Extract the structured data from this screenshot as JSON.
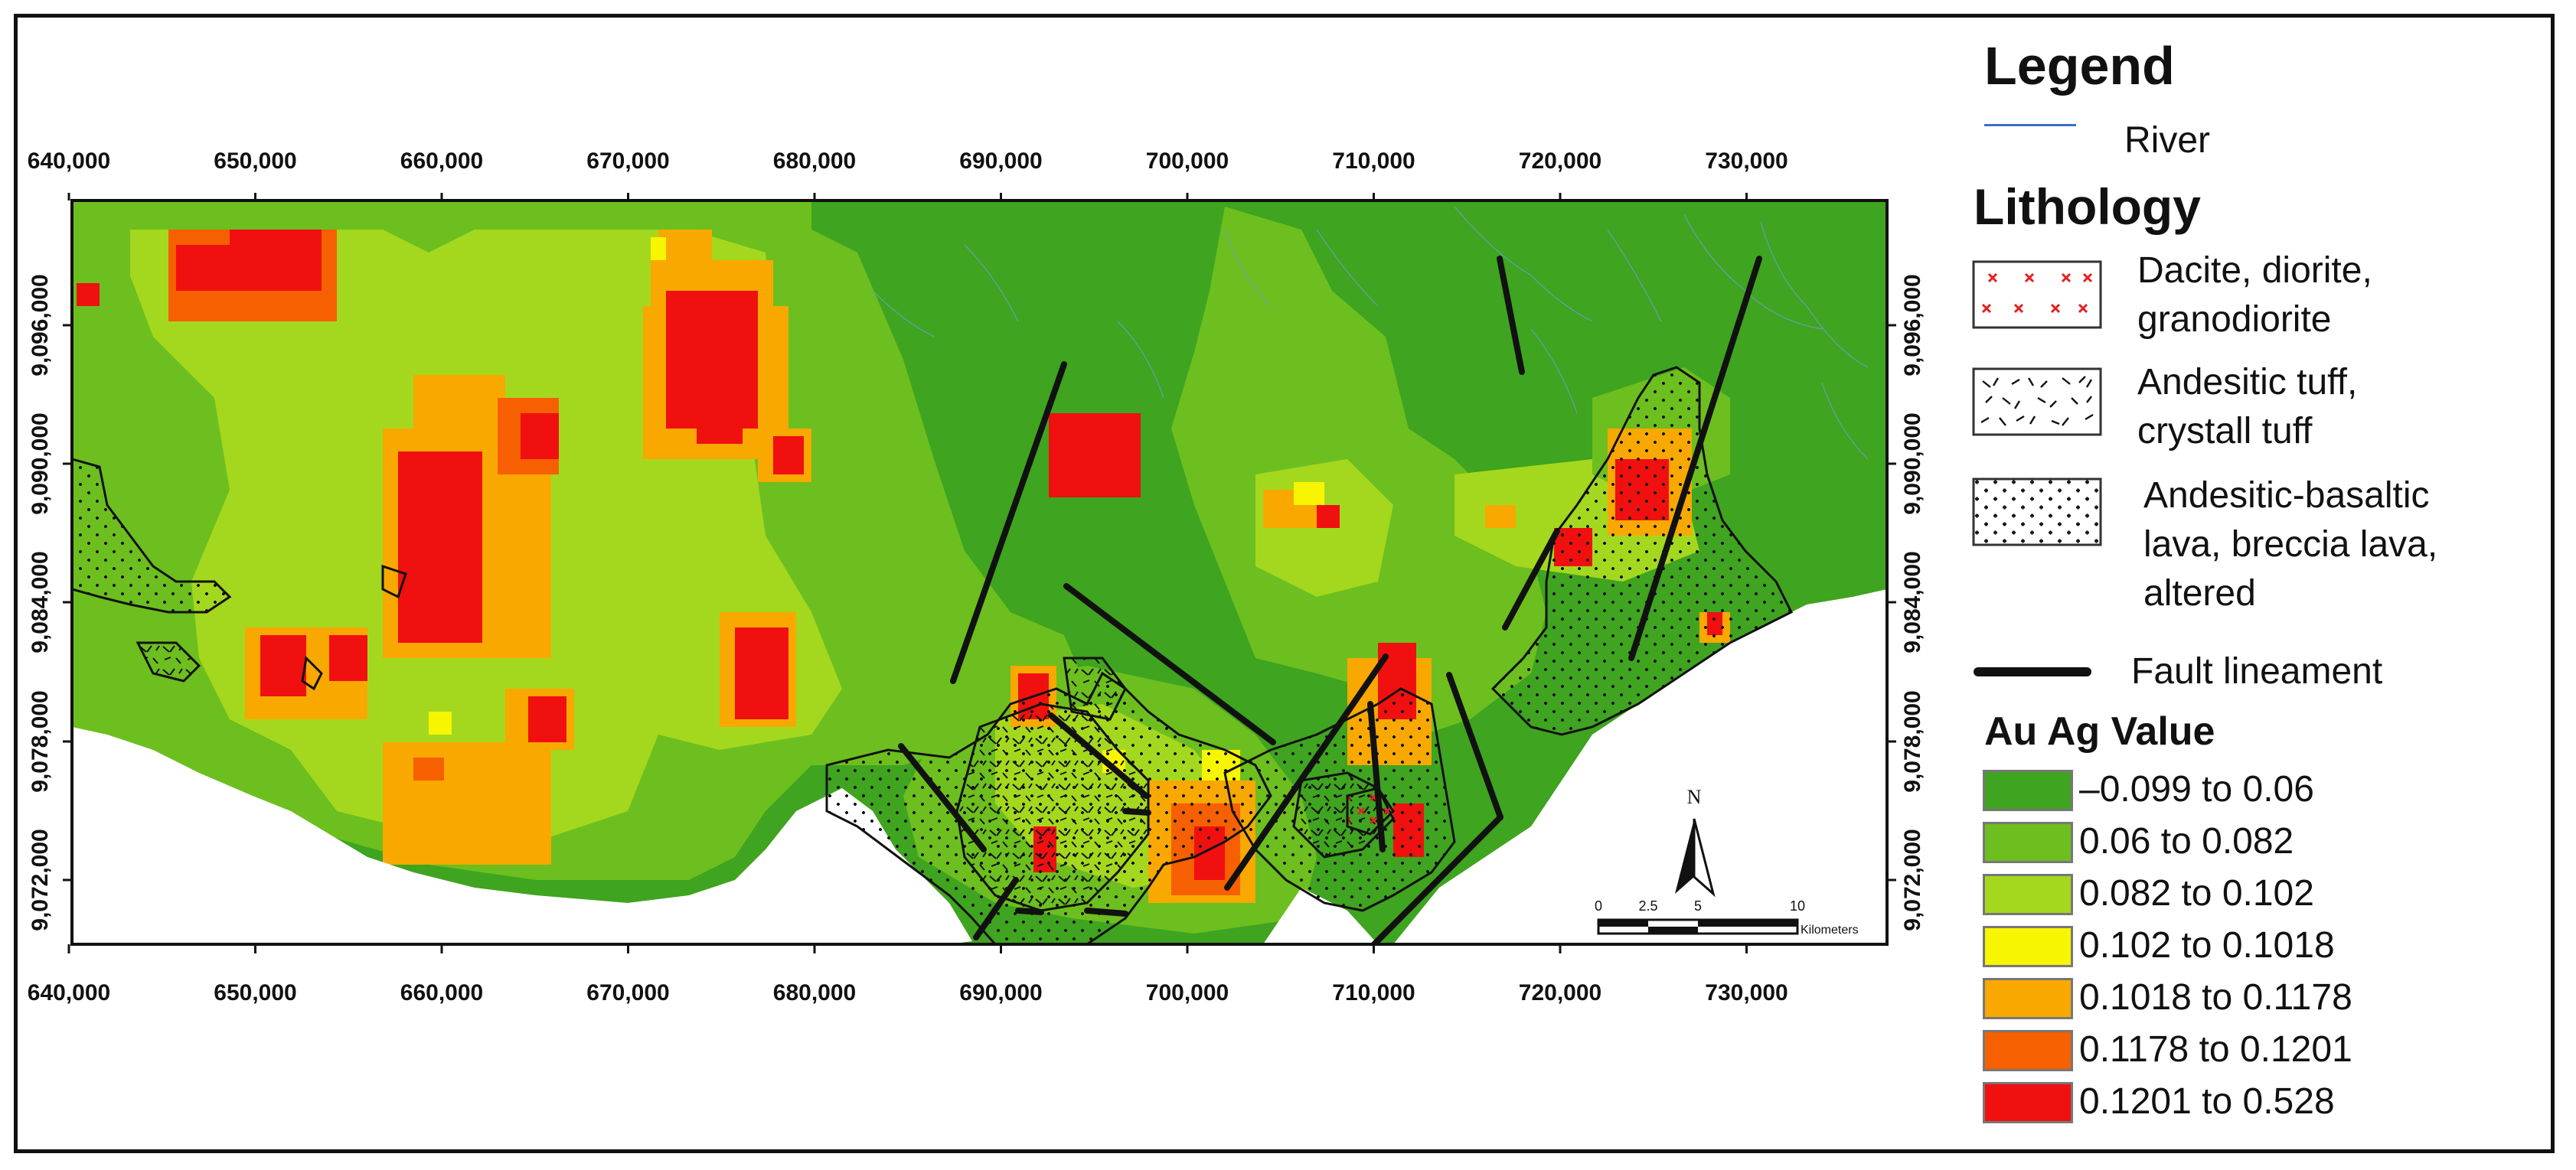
{
  "map": {
    "x_ticks": [
      "640,000",
      "650,000",
      "660,000",
      "670,000",
      "680,000",
      "690,000",
      "700,000",
      "710,000",
      "720,000",
      "730,000"
    ],
    "y_ticks": [
      "9,096,000",
      "9,090,000",
      "9,084,000",
      "9,078,000",
      "9,072,000"
    ],
    "scale_bar": {
      "labels": [
        "0",
        "2.5",
        "5",
        "10"
      ],
      "unit": "Kilometers",
      "north": "N"
    },
    "colors": {
      "background_green": "#3fa41f",
      "mid_green": "#6cbf1e",
      "light_green": "#a4d81e",
      "yellow": "#f8f500",
      "orange": "#f9a800",
      "dark_orange": "#f66000",
      "red": "#f01010",
      "sea": "#ffffff"
    }
  },
  "legend": {
    "title": "Legend",
    "river_label": "River",
    "lithology_title": "Lithology",
    "lithology": [
      {
        "line1": "Dacite, diorite,",
        "line2": "granodiorite",
        "icon": "cross-pattern-icon"
      },
      {
        "line1": "Andesitic tuff,",
        "line2": "crystall tuff",
        "icon": "tuff-pattern-icon"
      },
      {
        "line1": "Andesitic-basaltic",
        "line2": "lava, breccia lava,",
        "line3": "altered",
        "icon": "dot-pattern-icon"
      }
    ],
    "fault_label": "Fault lineament",
    "value_title": "Au Ag Value",
    "classes": [
      {
        "label": "–0.099 to 0.06",
        "color": "#3fa41f"
      },
      {
        "label": "0.06 to 0.082",
        "color": "#6cbf1e"
      },
      {
        "label": "0.082 to 0.102",
        "color": "#a4d81e"
      },
      {
        "label": "0.102 to 0.1018",
        "color": "#f8f500"
      },
      {
        "label": "0.1018 to 0.1178",
        "color": "#f9a800"
      },
      {
        "label": "0.1178 to 0.1201",
        "color": "#f66000"
      },
      {
        "label": "0.1201 to 0.528",
        "color": "#f01010"
      }
    ]
  }
}
